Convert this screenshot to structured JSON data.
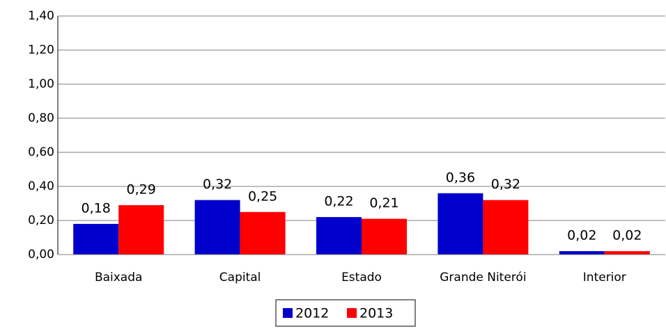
{
  "chart_data": {
    "type": "bar",
    "categories": [
      "Baixada",
      "Capital",
      "Estado",
      "Grande Niterói",
      "Interior"
    ],
    "series": [
      {
        "name": "2012",
        "color": "#0000cc",
        "values": [
          0.18,
          0.32,
          0.22,
          0.36,
          0.02
        ],
        "value_labels": [
          "0,18",
          "0,32",
          "0,22",
          "0,36",
          "0,02"
        ]
      },
      {
        "name": "2013",
        "color": "#ff0000",
        "values": [
          0.29,
          0.25,
          0.21,
          0.32,
          0.02
        ],
        "value_labels": [
          "0,29",
          "0,25",
          "0,21",
          "0,32",
          "0,02"
        ]
      }
    ],
    "ylim": [
      0,
      1.4
    ],
    "yticks": [
      {
        "value": 0,
        "label": "0,00"
      },
      {
        "value": 0.2,
        "label": "0,20"
      },
      {
        "value": 0.4,
        "label": "0,40"
      },
      {
        "value": 0.6,
        "label": "0,60"
      },
      {
        "value": 0.8,
        "label": "0,80"
      },
      {
        "value": 1.0,
        "label": "1,00"
      },
      {
        "value": 1.2,
        "label": "1,20"
      },
      {
        "value": 1.4,
        "label": "1,40"
      }
    ],
    "grid": true,
    "legend": "bottom"
  }
}
